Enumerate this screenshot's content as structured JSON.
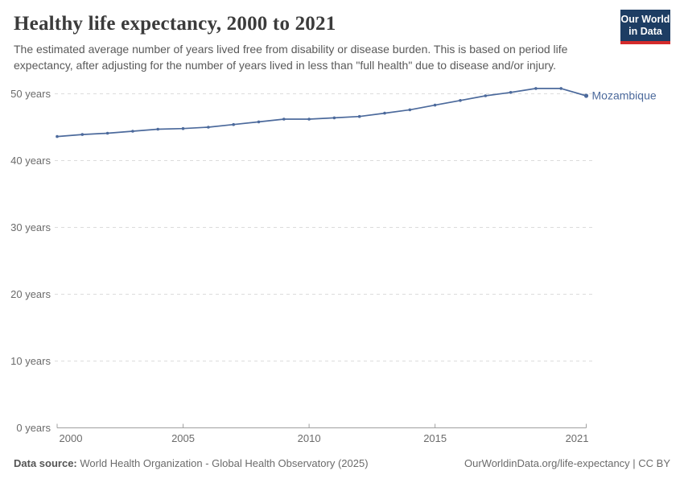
{
  "header": {
    "title": "Healthy life expectancy, 2000 to 2021",
    "subtitle_lines": [
      "The estimated average number of years lived free from disability or disease burden. This is based on period life",
      "expectancy, after adjusting for the number of years lived in less than \"full health\" due to disease and/or injury."
    ],
    "logo": {
      "line1": "Our World",
      "line2": "in Data",
      "bg_color": "#1d3d63",
      "accent_color": "#d42b2b"
    }
  },
  "chart_data": {
    "type": "line",
    "title": "Healthy life expectancy, 2000 to 2021",
    "xlabel": "",
    "ylabel": "",
    "xlim": [
      2000,
      2021
    ],
    "ylim": [
      0,
      55
    ],
    "grid": "horizontal-dashed",
    "gridline_color": "#dcdcdc",
    "axis_color": "#a0a0a0",
    "tick_label_color": "#6b6b6b",
    "legend_position": "end-of-line",
    "yticks": [
      {
        "value": 0,
        "label": "0 years"
      },
      {
        "value": 10,
        "label": "10 years"
      },
      {
        "value": 20,
        "label": "20 years"
      },
      {
        "value": 30,
        "label": "30 years"
      },
      {
        "value": 40,
        "label": "40 years"
      },
      {
        "value": 50,
        "label": "50 years"
      }
    ],
    "xticks": [
      {
        "value": 2000,
        "label": "2000"
      },
      {
        "value": 2005,
        "label": "2005"
      },
      {
        "value": 2010,
        "label": "2010"
      },
      {
        "value": 2015,
        "label": "2015"
      },
      {
        "value": 2021,
        "label": "2021"
      }
    ],
    "series": [
      {
        "name": "Mozambique",
        "color": "#4C6A9C",
        "x": [
          2000,
          2001,
          2002,
          2003,
          2004,
          2005,
          2006,
          2007,
          2008,
          2009,
          2010,
          2011,
          2012,
          2013,
          2014,
          2015,
          2016,
          2017,
          2018,
          2019,
          2020,
          2021
        ],
        "values": [
          43.6,
          43.9,
          44.1,
          44.4,
          44.7,
          44.8,
          45.0,
          45.4,
          45.8,
          46.2,
          46.2,
          46.4,
          46.6,
          47.1,
          47.6,
          48.3,
          49.0,
          49.7,
          50.2,
          50.8,
          50.8,
          49.7
        ]
      }
    ]
  },
  "footer": {
    "source_label": "Data source:",
    "source_text": "World Health Organization - Global Health Observatory (2025)",
    "attribution": "OurWorldinData.org/life-expectancy | CC BY"
  }
}
